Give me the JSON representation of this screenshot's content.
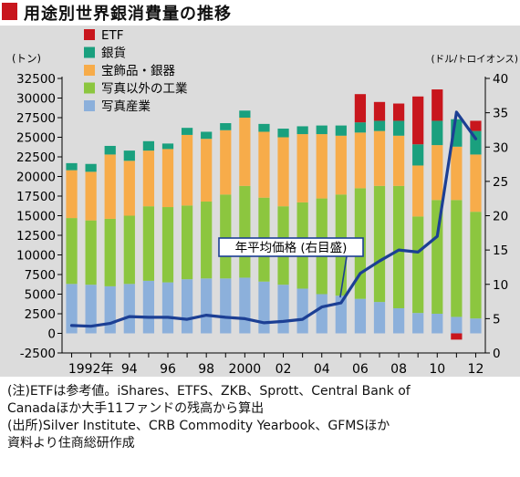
{
  "title": "用途別世界銀消費量の推移",
  "chart_data": {
    "type": "bar",
    "stacked": true,
    "categories": [
      "1991",
      "1992",
      "1993",
      "1994",
      "1995",
      "1996",
      "1997",
      "1998",
      "1999",
      "2000",
      "2001",
      "2002",
      "2003",
      "2004",
      "2005",
      "2006",
      "2007",
      "2008",
      "2009",
      "2010",
      "2011",
      "2012"
    ],
    "x_tick_labels": [
      {
        "category": "1992",
        "label": "1992年"
      },
      {
        "category": "1994",
        "label": "94"
      },
      {
        "category": "1996",
        "label": "96"
      },
      {
        "category": "1998",
        "label": "98"
      },
      {
        "category": "2000",
        "label": "2000"
      },
      {
        "category": "2002",
        "label": "02"
      },
      {
        "category": "2004",
        "label": "04"
      },
      {
        "category": "2006",
        "label": "06"
      },
      {
        "category": "2008",
        "label": "08"
      },
      {
        "category": "2010",
        "label": "10"
      },
      {
        "category": "2012",
        "label": "12"
      }
    ],
    "left_axis": {
      "unit_label": "(トン)",
      "ylim": [
        -2500,
        32500
      ],
      "ticks": [
        "-2500",
        "0",
        "2500",
        "5000",
        "7500",
        "10000",
        "12500",
        "15000",
        "17500",
        "20000",
        "22500",
        "25000",
        "27500",
        "30000",
        "32500"
      ]
    },
    "right_axis": {
      "unit_label": "(ドル/トロイオンス)",
      "ylim": [
        0,
        40
      ],
      "ticks": [
        "0",
        "5",
        "10",
        "15",
        "20",
        "25",
        "30",
        "35",
        "40"
      ]
    },
    "legend_position": "top-left",
    "series": [
      {
        "name": "写真産業",
        "color": "#8cb0db",
        "values": [
          6300,
          6200,
          6000,
          6300,
          6700,
          6500,
          6900,
          7000,
          7000,
          7100,
          6600,
          6200,
          5700,
          5000,
          4800,
          4400,
          4000,
          3200,
          2600,
          2500,
          2100,
          1900
        ]
      },
      {
        "name": "写真以外の工業",
        "color": "#8cc63f",
        "values": [
          8400,
          8200,
          8600,
          8700,
          9500,
          9600,
          9400,
          9800,
          10700,
          11700,
          10700,
          10000,
          11000,
          12200,
          12900,
          14100,
          14800,
          15600,
          12300,
          14500,
          14900,
          13600
        ]
      },
      {
        "name": "宝飾品・銀器",
        "color": "#f7ac4a",
        "values": [
          6100,
          6200,
          8200,
          7000,
          7100,
          7400,
          9000,
          8000,
          8200,
          8700,
          8400,
          8800,
          8700,
          8200,
          7500,
          7100,
          7000,
          6400,
          6500,
          7000,
          6800,
          7300
        ]
      },
      {
        "name": "銀貨",
        "color": "#1aa07e",
        "values": [
          900,
          1000,
          1100,
          1300,
          1200,
          700,
          900,
          900,
          900,
          900,
          1000,
          1100,
          1000,
          1100,
          1300,
          1300,
          1300,
          1900,
          2700,
          3100,
          3500,
          3000
        ]
      },
      {
        "name": "ETF",
        "color": "#c8161d",
        "values": [
          0,
          0,
          0,
          0,
          0,
          0,
          0,
          0,
          0,
          0,
          0,
          0,
          0,
          0,
          0,
          3600,
          2400,
          2200,
          6100,
          4000,
          -800,
          1300
        ]
      }
    ],
    "line": {
      "name": "年平均価格 (右目盛)",
      "color": "#1c3f94",
      "axis": "right",
      "values": [
        4.0,
        3.9,
        4.3,
        5.3,
        5.2,
        5.2,
        4.9,
        5.5,
        5.2,
        5.0,
        4.4,
        4.6,
        4.9,
        6.7,
        7.3,
        11.6,
        13.4,
        15.0,
        14.7,
        17.0,
        35.1,
        31.2
      ]
    }
  },
  "notes": {
    "line1": "(注)ETFは参考値。iShares、ETFS、ZKB、Sprott、Central Bank of",
    "line2": "Canadaほか大手11ファンドの残高から算出",
    "line3": "(出所)Silver Institute、CRB Commodity Yearbook、GFMSほか",
    "line4": "資料より住商総研作成"
  }
}
